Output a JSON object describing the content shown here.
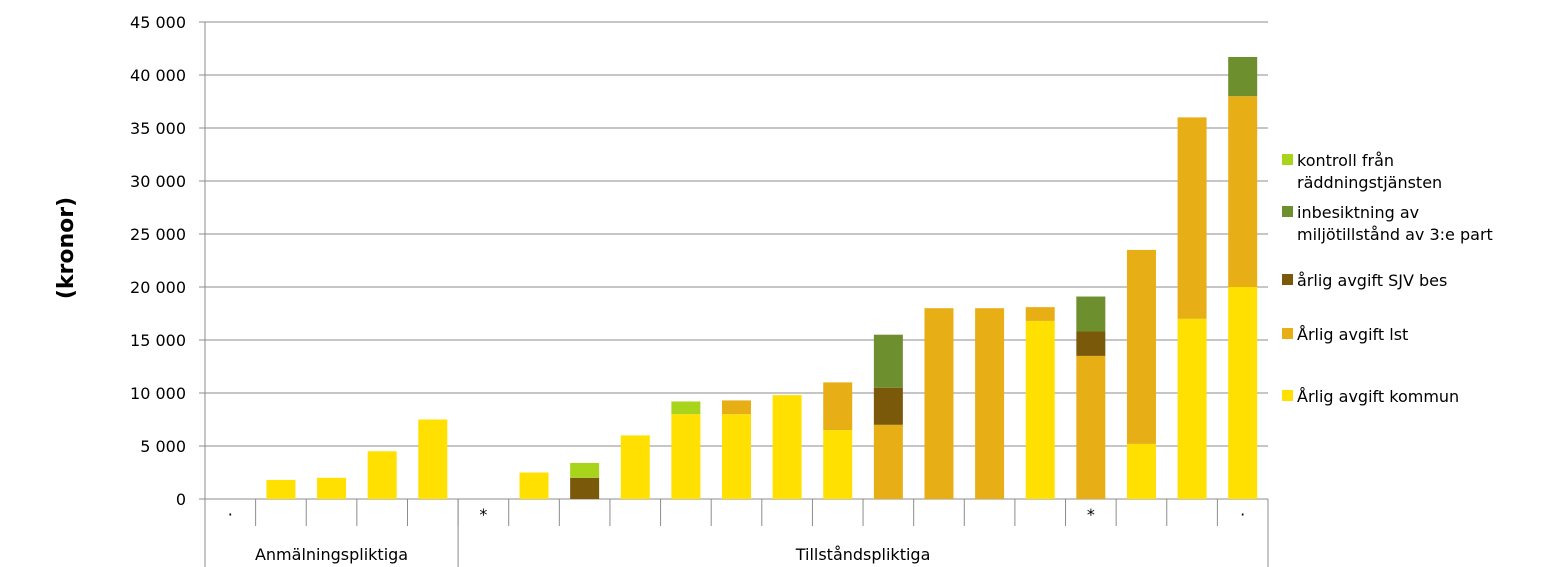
{
  "chart_data": {
    "type": "bar",
    "stacked": true,
    "ylabel": "(kronor)",
    "ylim": [
      0,
      45000
    ],
    "yticks": [
      0,
      5000,
      10000,
      15000,
      20000,
      25000,
      30000,
      35000,
      40000,
      45000
    ],
    "ytick_labels": [
      "0",
      "5 000",
      "10 000",
      "15 000",
      "20 000",
      "25 000",
      "30 000",
      "35 000",
      "40 000",
      "45 000"
    ],
    "grid": true,
    "legend_position": "right",
    "categories": [
      "·",
      "",
      "",
      "",
      "",
      "*",
      "",
      "",
      "",
      "",
      "",
      "",
      "",
      "",
      "",
      "",
      "",
      "*",
      "",
      "",
      "·"
    ],
    "groups": [
      {
        "label": "Anmälningspliktiga",
        "count": 5
      },
      {
        "label": "Tillståndspliktiga",
        "count": 16
      }
    ],
    "series": [
      {
        "name": "Årlig avgift kommun",
        "color": "#FFE000",
        "values": [
          0,
          1800,
          2000,
          4500,
          7500,
          0,
          2500,
          0,
          6000,
          8000,
          8000,
          9800,
          6500,
          0,
          0,
          0,
          16800,
          0,
          5200,
          17000,
          20000
        ]
      },
      {
        "name": "Årlig avgift lst",
        "color": "#E8AE16",
        "values": [
          0,
          0,
          0,
          0,
          0,
          0,
          0,
          0,
          0,
          0,
          1300,
          0,
          4500,
          7000,
          18000,
          18000,
          1300,
          13500,
          18300,
          19000,
          18000
        ]
      },
      {
        "name": "årlig avgift SJV bes",
        "color": "#7A5A0A",
        "values": [
          0,
          0,
          0,
          0,
          0,
          0,
          0,
          2000,
          0,
          0,
          0,
          0,
          0,
          3500,
          0,
          0,
          0,
          2300,
          0,
          0,
          0
        ]
      },
      {
        "name": "inbesiktning av miljötillstånd av 3:e part",
        "color": "#6E8F2E",
        "values": [
          0,
          0,
          0,
          0,
          0,
          0,
          0,
          0,
          0,
          0,
          0,
          0,
          0,
          5000,
          0,
          0,
          0,
          3300,
          0,
          0,
          3700
        ]
      },
      {
        "name": "kontroll från räddningstjänsten",
        "color": "#A8D41C",
        "values": [
          0,
          0,
          0,
          0,
          0,
          0,
          0,
          1400,
          0,
          1200,
          0,
          0,
          0,
          0,
          0,
          0,
          0,
          0,
          0,
          0,
          0
        ]
      }
    ],
    "legend": [
      {
        "lines": [
          "kontroll från",
          "räddningstjänsten"
        ],
        "color": "#A8D41C"
      },
      {
        "lines": [
          "inbesiktning av",
          "miljötillstånd av 3:e part"
        ],
        "color": "#6E8F2E"
      },
      {
        "lines": [
          "årlig avgift SJV bes"
        ],
        "color": "#7A5A0A"
      },
      {
        "lines": [
          "Årlig avgift lst"
        ],
        "color": "#E8AE16"
      },
      {
        "lines": [
          "Årlig avgift kommun"
        ],
        "color": "#FFE000"
      }
    ]
  }
}
